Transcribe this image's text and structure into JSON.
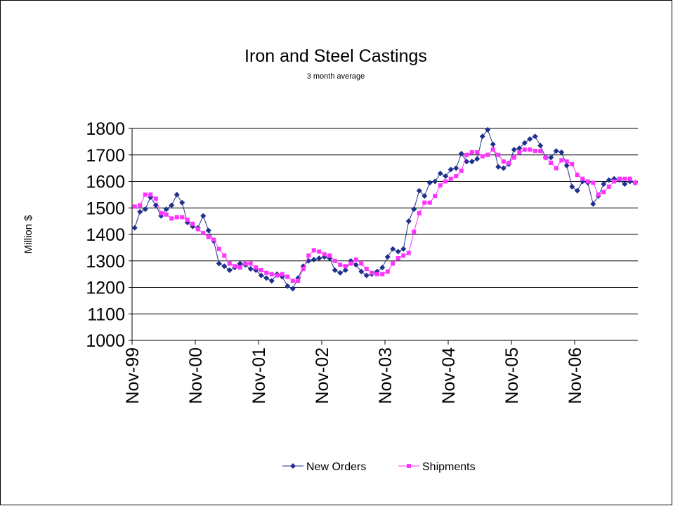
{
  "chart_data": {
    "type": "line",
    "title": "Iron and Steel Castings",
    "subtitle": "3 month average",
    "y_label": "Million $",
    "categories": [
      "Nov-99",
      null,
      null,
      null,
      null,
      null,
      null,
      null,
      null,
      null,
      null,
      null,
      "Nov-00",
      null,
      null,
      null,
      null,
      null,
      null,
      null,
      null,
      null,
      null,
      null,
      "Nov-01",
      null,
      null,
      null,
      null,
      null,
      null,
      null,
      null,
      null,
      null,
      null,
      "Nov-02",
      null,
      null,
      null,
      null,
      null,
      null,
      null,
      null,
      null,
      null,
      null,
      "Nov-03",
      null,
      null,
      null,
      null,
      null,
      null,
      null,
      null,
      null,
      null,
      null,
      "Nov-04",
      null,
      null,
      null,
      null,
      null,
      null,
      null,
      null,
      null,
      null,
      null,
      "Nov-05",
      null,
      null,
      null,
      null,
      null,
      null,
      null,
      null,
      null,
      null,
      null,
      "Nov-06",
      null,
      null,
      null,
      null,
      null,
      null,
      null,
      null,
      null,
      null,
      null
    ],
    "series": [
      {
        "name": "New Orders",
        "color": "#1f2f8c",
        "marker": "diamond",
        "values": [
          1425,
          1485,
          1495,
          1540,
          1510,
          1470,
          1495,
          1510,
          1550,
          1520,
          1445,
          1430,
          1425,
          1470,
          1415,
          1375,
          1290,
          1280,
          1265,
          1275,
          1290,
          1285,
          1270,
          1265,
          1245,
          1235,
          1225,
          1250,
          1240,
          1205,
          1195,
          1235,
          1280,
          1300,
          1305,
          1310,
          1315,
          1310,
          1265,
          1255,
          1265,
          1300,
          1285,
          1260,
          1245,
          1250,
          1260,
          1275,
          1315,
          1345,
          1335,
          1345,
          1450,
          1495,
          1565,
          1545,
          1595,
          1600,
          1630,
          1620,
          1645,
          1650,
          1705,
          1675,
          1675,
          1685,
          1770,
          1795,
          1740,
          1655,
          1650,
          1665,
          1720,
          1725,
          1745,
          1760,
          1770,
          1735,
          1690,
          1690,
          1715,
          1710,
          1660,
          1580,
          1565,
          1600,
          1595,
          1515,
          1545,
          1590,
          1605,
          1610,
          1605,
          1590,
          1600,
          1595
        ]
      },
      {
        "name": "Shipments",
        "color": "#ff33ff",
        "marker": "square",
        "values": [
          1505,
          1510,
          1550,
          1550,
          1535,
          1480,
          1475,
          1460,
          1465,
          1465,
          1455,
          1440,
          1420,
          1405,
          1390,
          1380,
          1345,
          1320,
          1290,
          1280,
          1275,
          1290,
          1290,
          1275,
          1265,
          1255,
          1250,
          1245,
          1250,
          1240,
          1225,
          1225,
          1270,
          1320,
          1340,
          1335,
          1325,
          1320,
          1300,
          1285,
          1280,
          1290,
          1305,
          1290,
          1270,
          1255,
          1250,
          1250,
          1260,
          1290,
          1310,
          1320,
          1330,
          1410,
          1480,
          1520,
          1520,
          1545,
          1585,
          1600,
          1610,
          1620,
          1640,
          1700,
          1710,
          1710,
          1695,
          1700,
          1720,
          1700,
          1675,
          1670,
          1690,
          1710,
          1720,
          1720,
          1715,
          1715,
          1690,
          1670,
          1650,
          1680,
          1675,
          1665,
          1625,
          1610,
          1600,
          1595,
          1550,
          1560,
          1580,
          1600,
          1610,
          1610,
          1610,
          1595
        ]
      }
    ],
    "ylim": [
      1000,
      1800
    ],
    "yticks": [
      1000,
      1100,
      1200,
      1300,
      1400,
      1500,
      1600,
      1700,
      1800
    ],
    "grid": true,
    "legend": "bottom"
  }
}
